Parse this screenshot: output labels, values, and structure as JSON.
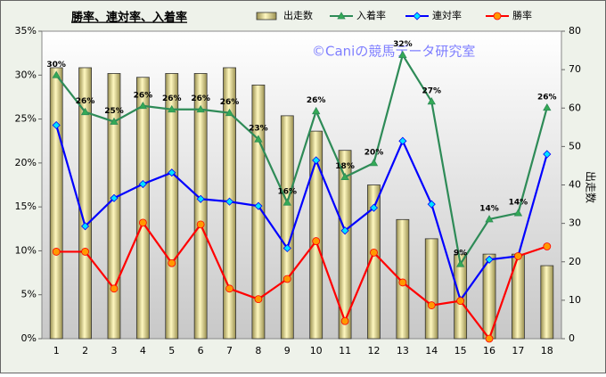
{
  "chart_data": {
    "type": "combo",
    "title": "勝率、連対率、入着率",
    "watermark": "©Caniの競馬データ研究室",
    "y2label": "出走数",
    "categories": [
      "1",
      "2",
      "3",
      "4",
      "5",
      "6",
      "7",
      "8",
      "9",
      "10",
      "11",
      "12",
      "13",
      "14",
      "15",
      "16",
      "17",
      "18"
    ],
    "series": [
      {
        "name": "出走数",
        "type": "bar",
        "axis": "y2",
        "color": "#e6dc8c",
        "values": [
          70.5,
          70.5,
          69,
          68,
          69,
          69,
          70.5,
          66,
          58,
          54,
          49,
          40,
          31,
          26,
          22,
          22,
          22,
          19
        ]
      },
      {
        "name": "入着率",
        "type": "line",
        "color": "#2e8b57",
        "marker": "triangle",
        "marker_color": "#33aa55",
        "values": [
          30.0,
          25.8,
          24.7,
          26.5,
          26.1,
          26.1,
          25.7,
          22.7,
          15.5,
          25.9,
          18.4,
          20.0,
          32.3,
          27.0,
          8.5,
          13.6,
          14.3,
          26.3
        ],
        "value_labels": [
          "30%",
          "26%",
          "25%",
          "26%",
          "26%",
          "26%",
          "26%",
          "23%",
          "16%",
          "26%",
          "18%",
          "20%",
          "32%",
          "27%",
          "9%",
          "14%",
          "14%",
          "26%"
        ]
      },
      {
        "name": "連対率",
        "type": "line",
        "color": "#0000ff",
        "marker": "diamond",
        "marker_color": "#00e5ff",
        "values": [
          24.3,
          12.8,
          16.0,
          17.6,
          18.9,
          15.9,
          15.6,
          15.1,
          10.3,
          20.3,
          12.3,
          14.9,
          22.5,
          15.3,
          4.4,
          9.0,
          9.4,
          21.0
        ]
      },
      {
        "name": "勝率",
        "type": "line",
        "color": "#ff0000",
        "marker": "circle",
        "marker_color": "#ff9900",
        "values": [
          9.9,
          9.9,
          5.7,
          13.2,
          8.6,
          13.0,
          5.7,
          4.5,
          6.8,
          11.1,
          2.0,
          9.8,
          6.4,
          3.8,
          4.3,
          0,
          9.4,
          10.5
        ]
      }
    ],
    "ylim": [
      0,
      35
    ],
    "yticks": [
      {
        "value": 0,
        "label": "0%"
      },
      {
        "value": 5,
        "label": "5%"
      },
      {
        "value": 10,
        "label": "10%"
      },
      {
        "value": 15,
        "label": "15%"
      },
      {
        "value": 20,
        "label": "20%"
      },
      {
        "value": 25,
        "label": "25%"
      },
      {
        "value": 30,
        "label": "30%"
      },
      {
        "value": 35,
        "label": "35%"
      }
    ],
    "y2lim": [
      0,
      80
    ],
    "y2ticks": [
      0,
      10,
      20,
      30,
      40,
      50,
      60,
      70,
      80
    ],
    "grid": false
  }
}
